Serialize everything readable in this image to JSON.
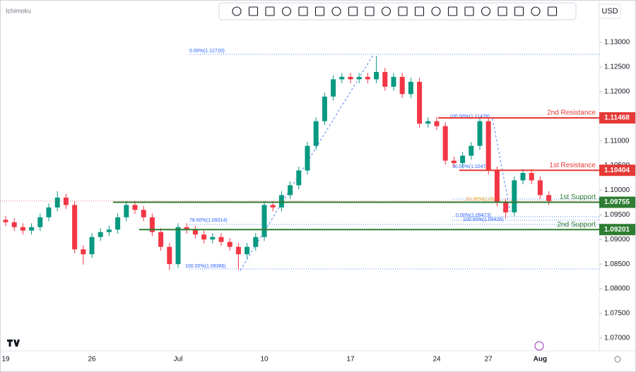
{
  "indicator": "Ichimoku",
  "currency": "USD",
  "chart_data": {
    "type": "candlestick",
    "categories": [
      "19",
      null,
      null,
      null,
      null,
      null,
      null,
      null,
      null,
      null,
      "26",
      null,
      null,
      null,
      null,
      null,
      null,
      null,
      null,
      null,
      "Jul",
      null,
      null,
      null,
      null,
      null,
      null,
      null,
      null,
      null,
      "10",
      null,
      null,
      null,
      null,
      null,
      null,
      null,
      null,
      null,
      "17",
      null,
      null,
      null,
      null,
      null,
      null,
      null,
      null,
      null,
      "24",
      null,
      null,
      null,
      null,
      null,
      "27",
      null,
      null,
      null,
      null,
      null,
      "Aug",
      null
    ],
    "open": [
      1.094,
      1.0935,
      1.0925,
      1.0918,
      1.0925,
      1.0945,
      1.0965,
      1.0985,
      1.097,
      1.088,
      1.087,
      1.0905,
      1.0915,
      1.092,
      1.0945,
      1.097,
      1.096,
      1.0945,
      1.0915,
      1.0885,
      1.085,
      1.0925,
      1.092,
      1.091,
      1.09,
      1.0905,
      1.0895,
      1.0885,
      1.087,
      1.0885,
      1.0905,
      1.097,
      1.0965,
      1.099,
      1.101,
      1.104,
      1.109,
      1.114,
      1.119,
      1.1225,
      1.123,
      1.1225,
      1.123,
      1.1225,
      1.124,
      1.121,
      1.123,
      1.1195,
      1.122,
      1.1135,
      1.114,
      1.113,
      1.106,
      1.1055,
      1.107,
      1.109,
      1.114,
      1.104,
      1.0975,
      1.0955,
      1.102,
      1.1035,
      1.102,
      1.099
    ],
    "high": [
      1.0948,
      1.0943,
      1.0933,
      1.0933,
      1.0953,
      1.0973,
      1.0998,
      1.0993,
      1.0978,
      1.0888,
      1.0913,
      1.0923,
      1.0928,
      1.0953,
      1.0978,
      1.0978,
      1.0968,
      1.0953,
      1.0923,
      1.0893,
      1.0933,
      1.0933,
      1.0928,
      1.0918,
      1.0913,
      1.0913,
      1.0903,
      1.0893,
      1.0893,
      1.0913,
      1.0978,
      1.0978,
      1.0998,
      1.1018,
      1.1048,
      1.1098,
      1.1148,
      1.1198,
      1.1233,
      1.1238,
      1.1238,
      1.1238,
      1.1238,
      1.1272,
      1.1248,
      1.1238,
      1.1238,
      1.1228,
      1.1228,
      1.1148,
      1.1148,
      1.1138,
      1.1068,
      1.1078,
      1.1098,
      1.1148,
      1.1148,
      1.1048,
      1.0983,
      1.1028,
      1.1043,
      1.1043,
      1.1028,
      1.0998
    ],
    "low": [
      1.0927,
      1.0917,
      1.091,
      1.091,
      1.0917,
      1.0937,
      1.0957,
      1.0962,
      1.0872,
      1.0849,
      1.0862,
      1.0897,
      1.0907,
      1.0912,
      1.0937,
      1.0952,
      1.0937,
      1.0907,
      1.0877,
      1.0838,
      1.0842,
      1.0912,
      1.0902,
      1.0892,
      1.0892,
      1.0887,
      1.0877,
      1.0838,
      1.0862,
      1.0877,
      1.0897,
      1.0957,
      1.0957,
      1.0982,
      1.1002,
      1.1032,
      1.1082,
      1.1132,
      1.1182,
      1.1217,
      1.1217,
      1.1217,
      1.1217,
      1.1217,
      1.1202,
      1.1202,
      1.1187,
      1.1187,
      1.1127,
      1.1127,
      1.1122,
      1.1052,
      1.1047,
      1.1047,
      1.1062,
      1.1082,
      1.1032,
      1.0967,
      1.0943,
      1.0947,
      1.1012,
      1.1012,
      1.0982,
      1.097
    ],
    "close": [
      1.0935,
      1.0925,
      1.0918,
      1.0925,
      1.0945,
      1.0965,
      1.0985,
      1.097,
      1.088,
      1.087,
      1.0905,
      1.0915,
      1.092,
      1.0945,
      1.097,
      1.096,
      1.0945,
      1.0915,
      1.0885,
      1.085,
      1.0925,
      1.092,
      1.091,
      1.09,
      1.0905,
      1.0895,
      1.0885,
      1.087,
      1.0885,
      1.0905,
      1.097,
      1.0965,
      1.099,
      1.101,
      1.104,
      1.109,
      1.114,
      1.119,
      1.1225,
      1.123,
      1.1225,
      1.123,
      1.1225,
      1.124,
      1.121,
      1.123,
      1.1195,
      1.122,
      1.1135,
      1.114,
      1.113,
      1.106,
      1.1055,
      1.107,
      1.109,
      1.114,
      1.104,
      1.0975,
      1.0955,
      1.102,
      1.1035,
      1.102,
      1.099,
      1.0978
    ],
    "up_color": "#089981",
    "down_color": "#f23645",
    "ylim": [
      1.0674,
      1.1386
    ],
    "yticks": [
      {
        "value": 1.07,
        "label": "1.07000"
      },
      {
        "value": 1.075,
        "label": "1.07500"
      },
      {
        "value": 1.08,
        "label": "1.08000"
      },
      {
        "value": 1.085,
        "label": "1.08500"
      },
      {
        "value": 1.09,
        "label": "1.09000"
      },
      {
        "value": 1.095,
        "label": "1.09500"
      },
      {
        "value": 1.1,
        "label": "1.10000"
      },
      {
        "value": 1.105,
        "label": "1.10500"
      },
      {
        "value": 1.11,
        "label": "1.11000"
      },
      {
        "value": 1.115,
        "label": "1.11500"
      },
      {
        "value": 1.12,
        "label": "1.12000"
      },
      {
        "value": 1.125,
        "label": "1.12500"
      },
      {
        "value": 1.13,
        "label": "1.13000"
      }
    ],
    "grid": false,
    "levels": [
      {
        "name": "2nd Resistance",
        "value": 1.11468,
        "color": "#e53935"
      },
      {
        "name": "1st Resistance",
        "value": 1.10404,
        "color": "#e53935"
      },
      {
        "name": "1st Support",
        "value": 1.09755,
        "color": "#2e7d32"
      },
      {
        "name": "2nd Support",
        "value": 1.09201,
        "color": "#2e7d32"
      }
    ],
    "annotations": [
      "0.00%(1.12720)",
      "78.60%(1.09314)",
      "100.00%(1.08386)",
      "100.00%(1.11478)",
      "50.00%(1.10476)",
      "61.80%(1.09...)",
      "0.00%(1.09473)",
      "100.00%(1.09426)"
    ]
  }
}
